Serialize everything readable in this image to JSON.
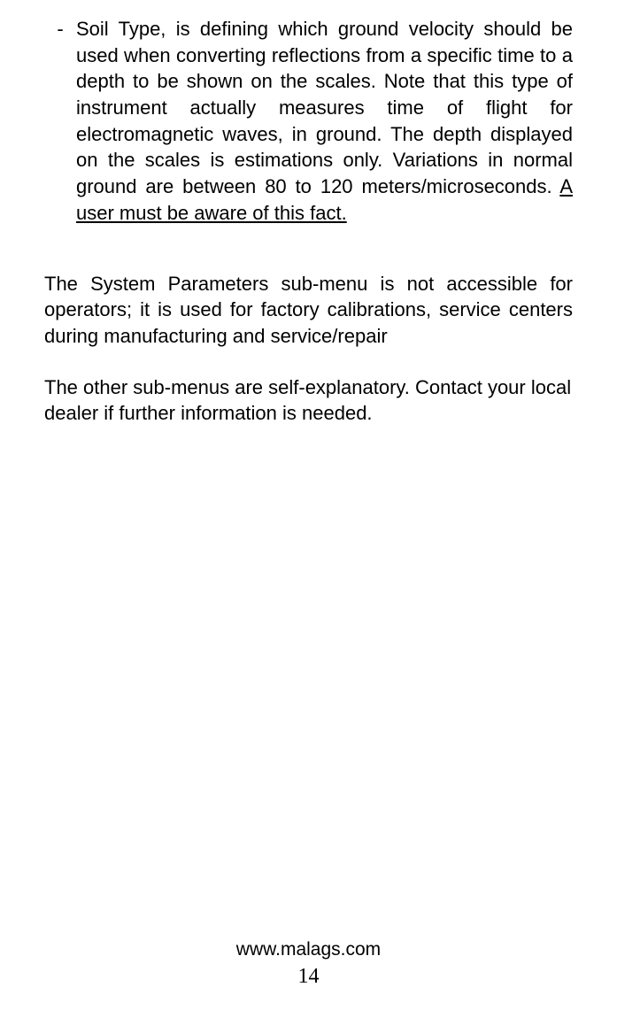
{
  "bullet": {
    "marker": "-",
    "text_normal": "Soil Type, is defining which ground velocity should be used when converting reflections from a specific time to a depth to be shown on the scales. Note that this type of instrument actually measures time of flight for electromagnetic waves, in ground. The depth displayed on the scales is estimations only. Variations in normal ground are between 80 to 120 meters/microseconds. ",
    "text_underlined": "A user must be aware of this fact."
  },
  "paragraph1": "The System Parameters sub-menu is not accessible for operators; it is used for factory calibrations, service centers during manufacturing and service/repair",
  "paragraph2": "The other sub-menus are self-explanatory. Contact your local dealer if further information is needed.",
  "footer": {
    "url": "www.malags.com",
    "page": "14"
  }
}
